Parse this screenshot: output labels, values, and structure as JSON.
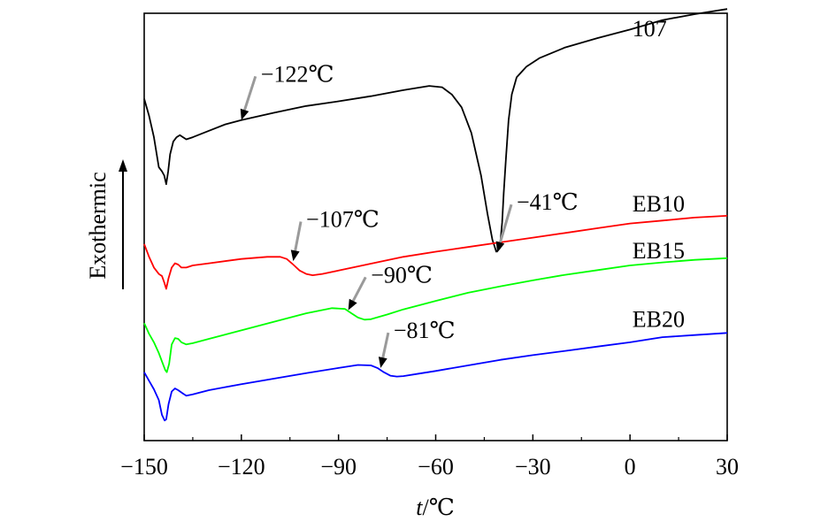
{
  "chart_data": {
    "type": "line",
    "title": "",
    "xlabel": {
      "var": "t",
      "sep": "/",
      "unit": "℃"
    },
    "ylabel": "Exothermic",
    "xlim": [
      -150,
      30
    ],
    "ylim": [
      0,
      10
    ],
    "xticks": [
      -150,
      -120,
      -90,
      -60,
      -30,
      0,
      30
    ],
    "xtick_labels": [
      "−150",
      "−120",
      "−90",
      "−60",
      "−30",
      "0",
      "30"
    ],
    "grid": false,
    "series": [
      {
        "name": "107",
        "color": "#000000",
        "points": [
          [
            -150,
            8.0
          ],
          [
            -148.5,
            7.6
          ],
          [
            -147,
            7.1
          ],
          [
            -145.5,
            6.4
          ],
          [
            -144.5,
            6.3
          ],
          [
            -143.8,
            6.2
          ],
          [
            -143.2,
            6.0
          ],
          [
            -142.6,
            6.3
          ],
          [
            -142,
            6.7
          ],
          [
            -141,
            7.0
          ],
          [
            -140,
            7.1
          ],
          [
            -139,
            7.15
          ],
          [
            -138,
            7.1
          ],
          [
            -137,
            7.05
          ],
          [
            -135,
            7.1
          ],
          [
            -130,
            7.25
          ],
          [
            -125,
            7.4
          ],
          [
            -120,
            7.5
          ],
          [
            -110,
            7.67
          ],
          [
            -100,
            7.83
          ],
          [
            -90,
            7.94
          ],
          [
            -80,
            8.06
          ],
          [
            -70,
            8.2
          ],
          [
            -62,
            8.3
          ],
          [
            -58,
            8.27
          ],
          [
            -55,
            8.1
          ],
          [
            -52,
            7.8
          ],
          [
            -49,
            7.2
          ],
          [
            -46,
            6.2
          ],
          [
            -44,
            5.3
          ],
          [
            -42.5,
            4.7
          ],
          [
            -41.3,
            4.42
          ],
          [
            -40.2,
            4.5
          ],
          [
            -39.5,
            5.1
          ],
          [
            -39,
            5.8
          ],
          [
            -38.3,
            6.6
          ],
          [
            -37.5,
            7.5
          ],
          [
            -36.5,
            8.1
          ],
          [
            -35,
            8.5
          ],
          [
            -32,
            8.75
          ],
          [
            -28,
            8.95
          ],
          [
            -20,
            9.2
          ],
          [
            -10,
            9.42
          ],
          [
            0,
            9.62
          ],
          [
            10,
            9.84
          ],
          [
            20,
            9.98
          ],
          [
            30,
            10.1
          ]
        ]
      },
      {
        "name": "EB10",
        "color": "#ff0000",
        "points": [
          [
            -150,
            4.6
          ],
          [
            -148.5,
            4.3
          ],
          [
            -147,
            4.05
          ],
          [
            -145.5,
            3.9
          ],
          [
            -144.5,
            3.85
          ],
          [
            -143.8,
            3.7
          ],
          [
            -143.2,
            3.55
          ],
          [
            -142.5,
            3.8
          ],
          [
            -141.5,
            4.05
          ],
          [
            -140.5,
            4.15
          ],
          [
            -139.5,
            4.12
          ],
          [
            -138.5,
            4.05
          ],
          [
            -137,
            4.05
          ],
          [
            -135,
            4.1
          ],
          [
            -130,
            4.15
          ],
          [
            -120,
            4.25
          ],
          [
            -112,
            4.3
          ],
          [
            -108,
            4.3
          ],
          [
            -106,
            4.25
          ],
          [
            -104,
            4.12
          ],
          [
            -102,
            3.98
          ],
          [
            -100,
            3.9
          ],
          [
            -98,
            3.87
          ],
          [
            -95,
            3.9
          ],
          [
            -90,
            3.98
          ],
          [
            -80,
            4.14
          ],
          [
            -70,
            4.3
          ],
          [
            -60,
            4.42
          ],
          [
            -50,
            4.53
          ],
          [
            -40,
            4.64
          ],
          [
            -30,
            4.75
          ],
          [
            -20,
            4.86
          ],
          [
            -10,
            4.97
          ],
          [
            0,
            5.08
          ],
          [
            10,
            5.15
          ],
          [
            20,
            5.22
          ],
          [
            30,
            5.26
          ]
        ]
      },
      {
        "name": "EB15",
        "color": "#00ff00",
        "points": [
          [
            -150,
            2.75
          ],
          [
            -148.5,
            2.5
          ],
          [
            -147,
            2.3
          ],
          [
            -145.5,
            2.05
          ],
          [
            -144.5,
            1.85
          ],
          [
            -143.5,
            1.65
          ],
          [
            -143,
            1.6
          ],
          [
            -142.3,
            1.8
          ],
          [
            -141.5,
            2.25
          ],
          [
            -140.5,
            2.4
          ],
          [
            -139.5,
            2.38
          ],
          [
            -138.5,
            2.3
          ],
          [
            -137,
            2.25
          ],
          [
            -135,
            2.28
          ],
          [
            -130,
            2.38
          ],
          [
            -120,
            2.58
          ],
          [
            -110,
            2.78
          ],
          [
            -100,
            2.98
          ],
          [
            -92,
            3.1
          ],
          [
            -88,
            3.08
          ],
          [
            -86,
            2.98
          ],
          [
            -84,
            2.88
          ],
          [
            -82,
            2.83
          ],
          [
            -80,
            2.84
          ],
          [
            -75,
            2.95
          ],
          [
            -70,
            3.07
          ],
          [
            -60,
            3.27
          ],
          [
            -50,
            3.46
          ],
          [
            -40,
            3.61
          ],
          [
            -30,
            3.75
          ],
          [
            -20,
            3.88
          ],
          [
            -10,
            3.99
          ],
          [
            0,
            4.1
          ],
          [
            10,
            4.17
          ],
          [
            20,
            4.23
          ],
          [
            30,
            4.27
          ]
        ]
      },
      {
        "name": "EB20",
        "color": "#0000ff",
        "points": [
          [
            -150,
            1.6
          ],
          [
            -148.5,
            1.4
          ],
          [
            -147,
            1.2
          ],
          [
            -145.5,
            0.95
          ],
          [
            -144.5,
            0.6
          ],
          [
            -143.7,
            0.47
          ],
          [
            -143.2,
            0.5
          ],
          [
            -142.5,
            0.85
          ],
          [
            -141.5,
            1.15
          ],
          [
            -140.5,
            1.22
          ],
          [
            -139.5,
            1.18
          ],
          [
            -138,
            1.1
          ],
          [
            -137,
            1.05
          ],
          [
            -135,
            1.08
          ],
          [
            -130,
            1.18
          ],
          [
            -120,
            1.32
          ],
          [
            -110,
            1.45
          ],
          [
            -100,
            1.58
          ],
          [
            -90,
            1.7
          ],
          [
            -84,
            1.77
          ],
          [
            -80,
            1.76
          ],
          [
            -78,
            1.7
          ],
          [
            -76,
            1.6
          ],
          [
            -74,
            1.52
          ],
          [
            -72,
            1.5
          ],
          [
            -70,
            1.51
          ],
          [
            -65,
            1.57
          ],
          [
            -60,
            1.63
          ],
          [
            -50,
            1.76
          ],
          [
            -40,
            1.89
          ],
          [
            -30,
            2.0
          ],
          [
            -20,
            2.1
          ],
          [
            -10,
            2.2
          ],
          [
            0,
            2.3
          ],
          [
            10,
            2.42
          ],
          [
            20,
            2.47
          ],
          [
            30,
            2.52
          ]
        ]
      }
    ],
    "curve_labels": [
      {
        "text": "107",
        "x": 0.7,
        "y": 9.3
      },
      {
        "text": "EB10",
        "x": 0.7,
        "y": 5.2
      },
      {
        "text": "EB15",
        "x": 0.7,
        "y": 4.1
      },
      {
        "text": "EB20",
        "x": 0.7,
        "y": 2.5
      }
    ],
    "annotations": [
      {
        "text": "−122℃",
        "x": -120,
        "y": 7.5,
        "text_x": -114,
        "text_y": 8.4
      },
      {
        "text": "−107℃",
        "x": -104,
        "y": 4.2,
        "text_x": -100,
        "text_y": 5.0
      },
      {
        "text": "−41℃",
        "x": -41,
        "y": 4.4,
        "text_x": -35,
        "text_y": 5.4
      },
      {
        "text": "−90℃",
        "x": -87,
        "y": 3.05,
        "text_x": -80,
        "text_y": 3.7
      },
      {
        "text": "−81℃",
        "x": -77,
        "y": 1.7,
        "text_x": -73,
        "text_y": 2.4
      }
    ]
  }
}
